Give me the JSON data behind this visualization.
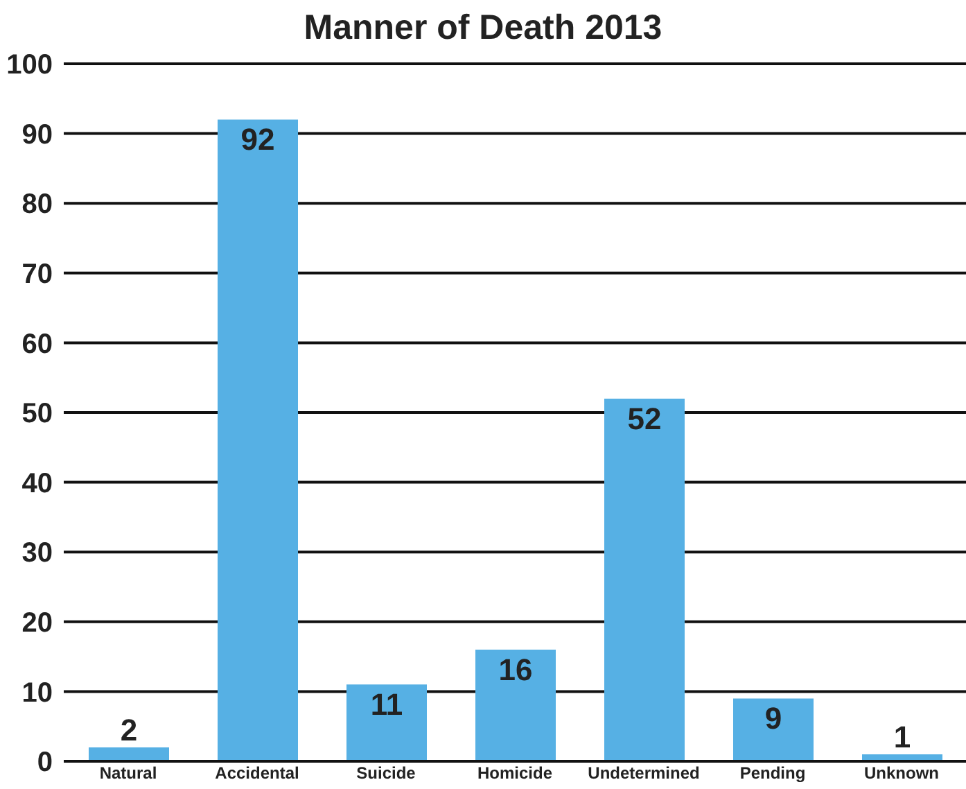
{
  "chart_data": {
    "type": "bar",
    "title": "Manner of Death 2013",
    "categories": [
      "Natural",
      "Accidental",
      "Suicide",
      "Homicide",
      "Undetermined",
      "Pending",
      "Unknown"
    ],
    "values": [
      2,
      92,
      11,
      16,
      52,
      9,
      1
    ],
    "color": "#56b0e4",
    "ylim": [
      0,
      100
    ],
    "yticks": [
      0,
      10,
      20,
      30,
      40,
      50,
      60,
      70,
      80,
      90,
      100
    ],
    "grid": "y",
    "data_labels": true
  }
}
